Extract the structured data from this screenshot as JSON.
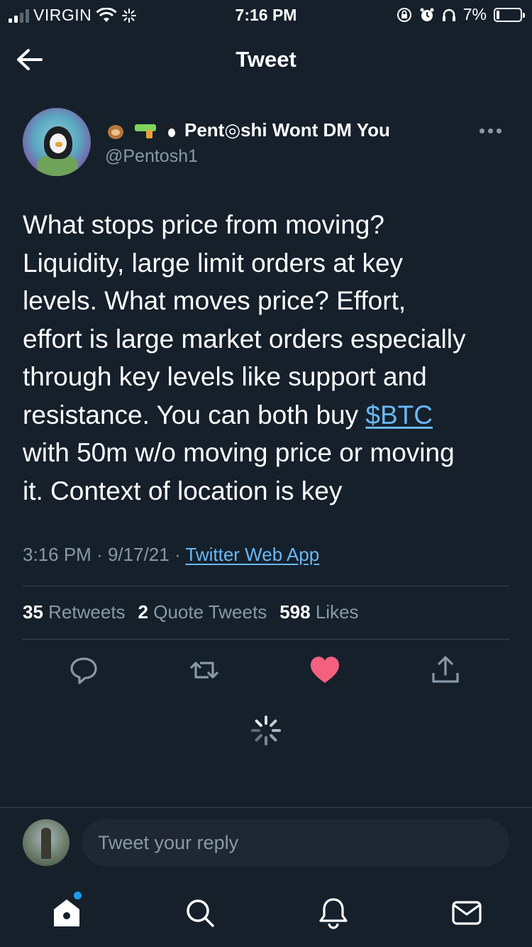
{
  "status_bar": {
    "carrier": "VIRGIN",
    "time": "7:16 PM",
    "battery": "7%"
  },
  "header": {
    "title": "Tweet"
  },
  "tweet": {
    "author": {
      "display_name": "Pent◎shi Wont DM You",
      "handle": "@Pentosh1"
    },
    "text_lines": [
      "What stops price from moving?",
      "Liquidity, large limit orders at key",
      "levels. What moves price? Effort,",
      "effort is large market orders especially",
      "through key levels like support and",
      "resistance. You can both buy "
    ],
    "cashtag": "$BTC",
    "text_tail": [
      "with 50m w/o moving price or moving",
      "it. Context of location is key"
    ],
    "time": "3:16 PM",
    "date": "9/17/21",
    "separator": "·",
    "source": "Twitter Web App",
    "stats": {
      "retweets_count": "35",
      "retweets_label": "Retweets",
      "quotes_count": "2",
      "quotes_label": "Quote Tweets",
      "likes_count": "598",
      "likes_label": "Likes"
    },
    "liked": true
  },
  "reply": {
    "placeholder": "Tweet your reply"
  },
  "colors": {
    "background": "#15202b",
    "accent": "#1d9bf0",
    "like": "#f4617f",
    "muted": "#8899a6"
  },
  "icons": {
    "back": "arrow-left-icon",
    "more": "more-dots-icon",
    "reply": "reply-bubble-icon",
    "retweet": "retweet-icon",
    "like": "heart-filled-icon",
    "share": "share-icon",
    "loading": "spinner-icon",
    "home": "home-icon",
    "search": "search-icon",
    "notifications": "bell-icon",
    "messages": "mail-icon"
  }
}
